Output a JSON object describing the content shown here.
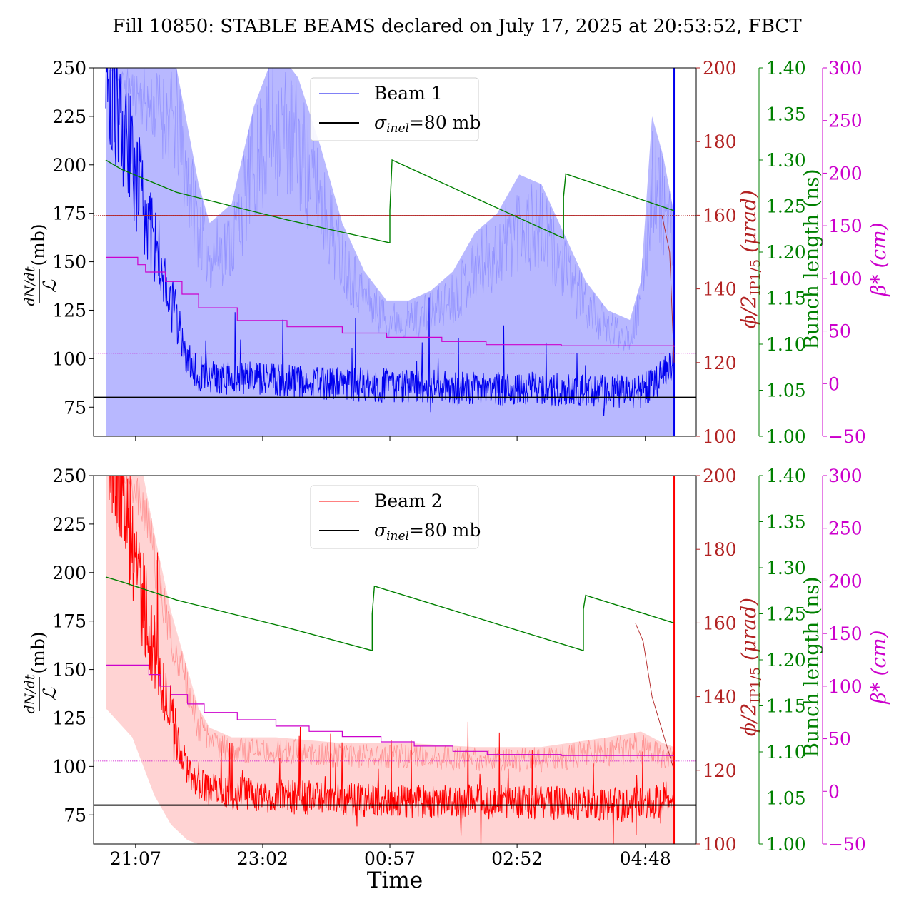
{
  "chart_data": {
    "title": "Fill 10850: STABLE BEAMS declared on July 17, 2025 at 20:53:52, FBCT",
    "xlabel": "Time",
    "x_tick_labels": [
      "21:07",
      "23:02",
      "00:57",
      "02:52",
      "04:48"
    ],
    "x_tick_values_min": [
      13,
      128,
      243,
      358,
      474
    ],
    "x_range_min": [
      -25,
      520
    ],
    "colors": {
      "beam1": "#0000ee",
      "beam1_band": "#8888ff",
      "beam2": "#ff0000",
      "beam2_band": "#ff8080",
      "sigma": "#000000",
      "phi_axis": "#b22222",
      "bunch_axis": "#008000",
      "beta_axis": "#cc00cc"
    },
    "axes": {
      "left": {
        "label_top": "dN/dt",
        "label_bottom": "ℒ",
        "unit": "(mb)",
        "ylim": [
          60,
          250
        ],
        "ticks": [
          75,
          100,
          125,
          150,
          175,
          200,
          225,
          250
        ]
      },
      "phi": {
        "label": "ϕ/2",
        "subscript": "IP1/5",
        "unit": "(μrad)",
        "ylim": [
          100,
          200
        ],
        "ticks": [
          100,
          120,
          140,
          160,
          180,
          200
        ]
      },
      "bunch": {
        "label": "Bunch length (ns)",
        "ylim": [
          1.0,
          1.4
        ],
        "ticks": [
          "1.00",
          "1.05",
          "1.10",
          "1.15",
          "1.20",
          "1.25",
          "1.30",
          "1.35",
          "1.40"
        ]
      },
      "beta": {
        "label": "β*",
        "unit": "(cm)",
        "ylim": [
          -50,
          300
        ],
        "ticks": [
          "−50",
          "0",
          "50",
          "100",
          "150",
          "200",
          "250",
          "300"
        ]
      }
    },
    "panels": [
      {
        "id": "beam1",
        "legend": [
          "Beam 1",
          "σinel=80 mb"
        ],
        "sigma_inel_mb": 80,
        "phi_urad_t": [
          -14,
          489,
          496,
          500
        ],
        "phi_urad_v": [
          160,
          160,
          150,
          120
        ],
        "bunch_length_t": [
          -14,
          0,
          50,
          150,
          243,
          243,
          245,
          400,
          400,
          402,
          500
        ],
        "bunch_length_v": [
          1.3,
          1.29,
          1.265,
          1.235,
          1.21,
          1.245,
          1.3,
          1.215,
          1.26,
          1.285,
          1.245
        ],
        "beta_cm_t": [
          -14,
          8,
          15,
          22,
          40,
          55,
          70,
          105,
          150,
          200,
          240,
          290,
          330,
          398,
          500
        ],
        "beta_cm_v": [
          120,
          120,
          113,
          106,
          97,
          85,
          72,
          60,
          54,
          48,
          44,
          40,
          37,
          36,
          35
        ],
        "series_trend_t": [
          -14,
          0,
          15,
          30,
          45,
          60,
          70,
          100,
          200,
          300,
          400,
          470,
          485,
          500
        ],
        "series_trend_v": [
          260,
          220,
          190,
          160,
          130,
          100,
          92,
          90,
          87,
          85,
          84,
          83,
          88,
          100
        ],
        "band_t": [
          -14,
          10,
          20,
          30,
          45,
          50,
          60,
          70,
          80,
          100,
          120,
          140,
          160,
          180,
          200,
          220,
          240,
          260,
          280,
          300,
          320,
          340,
          360,
          380,
          400,
          420,
          440,
          460,
          470,
          480,
          490,
          500
        ],
        "band_upper": [
          250,
          250,
          250,
          250,
          250,
          250,
          220,
          190,
          170,
          180,
          230,
          260,
          245,
          210,
          170,
          145,
          130,
          130,
          135,
          145,
          165,
          175,
          195,
          190,
          165,
          140,
          125,
          120,
          140,
          225,
          205,
          175
        ],
        "band_lower": [
          60,
          60,
          60,
          60,
          60,
          60,
          60,
          60,
          60,
          60,
          60,
          60,
          60,
          60,
          60,
          60,
          60,
          60,
          60,
          60,
          60,
          60,
          60,
          60,
          60,
          60,
          60,
          60,
          60,
          60,
          60,
          60
        ]
      },
      {
        "id": "beam2",
        "legend": [
          "Beam 2",
          "σinel=80 mb"
        ],
        "sigma_inel_mb": 80,
        "phi_urad_t": [
          -14,
          465,
          472,
          480,
          490,
          500
        ],
        "phi_urad_v": [
          160,
          160,
          155,
          140,
          130,
          120
        ],
        "bunch_length_t": [
          -14,
          0,
          50,
          150,
          227,
          227,
          229,
          418,
          418,
          420,
          500
        ],
        "bunch_length_v": [
          1.29,
          1.285,
          1.265,
          1.235,
          1.21,
          1.25,
          1.28,
          1.21,
          1.255,
          1.27,
          1.24
        ],
        "beta_cm_t": [
          -14,
          10,
          25,
          35,
          45,
          60,
          75,
          105,
          140,
          170,
          200,
          235,
          265,
          300,
          331,
          398,
          500
        ],
        "beta_cm_v": [
          120,
          120,
          111,
          100,
          92,
          83,
          75,
          68,
          62,
          57,
          52,
          47,
          43,
          38,
          35,
          34,
          34
        ],
        "series_trend_t": [
          -14,
          0,
          15,
          30,
          45,
          60,
          70,
          100,
          200,
          300,
          400,
          470,
          485,
          500
        ],
        "series_trend_v": [
          280,
          250,
          200,
          160,
          125,
          100,
          90,
          86,
          83,
          82,
          81,
          80,
          82,
          85
        ],
        "band_t": [
          -14,
          10,
          20,
          30,
          45,
          60,
          70,
          80,
          100,
          140,
          200,
          260,
          320,
          380,
          440,
          470,
          490,
          500
        ],
        "band_upper": [
          250,
          250,
          250,
          220,
          180,
          150,
          130,
          120,
          115,
          115,
          112,
          112,
          110,
          110,
          115,
          118,
          112,
          110
        ],
        "band_lower": [
          130,
          115,
          100,
          85,
          70,
          62,
          60,
          60,
          60,
          60,
          60,
          60,
          60,
          60,
          60,
          60,
          60,
          60
        ]
      }
    ]
  }
}
